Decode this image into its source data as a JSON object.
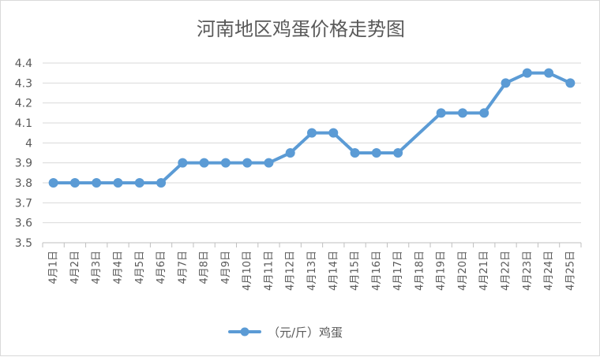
{
  "chart_data": {
    "type": "line",
    "title": "河南地区鸡蛋价格走势图",
    "categories": [
      "4月1日",
      "4月2日",
      "4月3日",
      "4月4日",
      "4月5日",
      "4月6日",
      "4月7日",
      "4月8日",
      "4月9日",
      "4月10日",
      "4月11日",
      "4月12日",
      "4月13日",
      "4月14日",
      "4月15日",
      "4月16日",
      "4月17日",
      "4月18日",
      "4月19日",
      "4月20日",
      "4月21日",
      "4月22日",
      "4月23日",
      "4月24日",
      "4月25日"
    ],
    "series": [
      {
        "name": "（元/斤）鸡蛋",
        "values": [
          3.8,
          3.8,
          3.8,
          3.8,
          3.8,
          3.8,
          3.9,
          3.9,
          3.9,
          3.9,
          3.9,
          3.95,
          4.05,
          4.05,
          3.95,
          3.95,
          3.95,
          null,
          4.15,
          4.15,
          4.15,
          4.3,
          4.35,
          4.35,
          4.3
        ],
        "color": "#5b9bd5"
      }
    ],
    "y_ticks": [
      "3.5",
      "3.6",
      "3.7",
      "3.8",
      "3.9",
      "4",
      "4.1",
      "4.2",
      "4.3",
      "4.4"
    ],
    "ylim": [
      3.5,
      4.4
    ],
    "grid": true,
    "legend_position": "bottom"
  }
}
